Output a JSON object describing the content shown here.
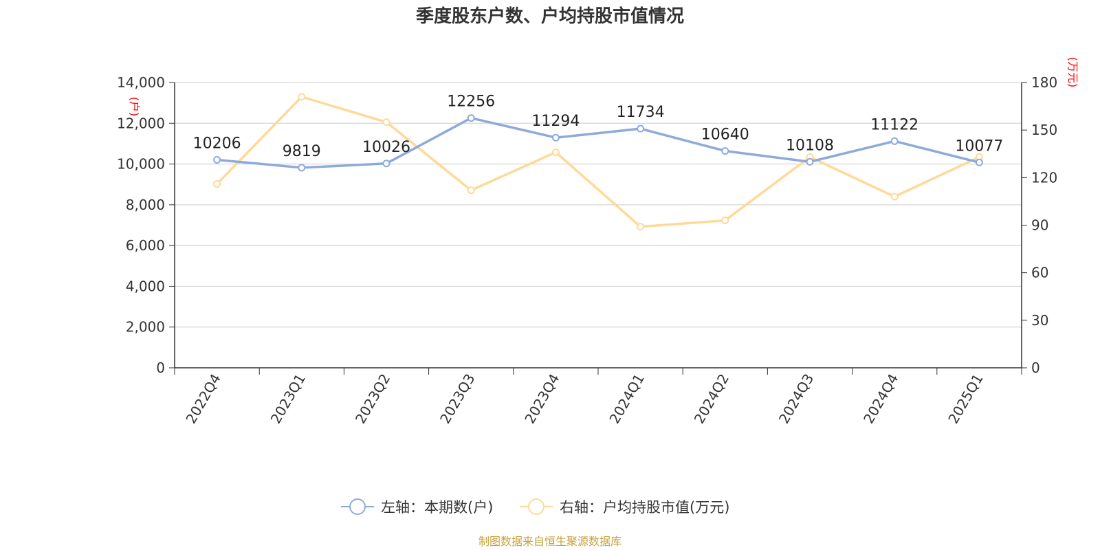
{
  "chart_data": {
    "type": "line",
    "title": "季度股东户数、户均持股市值情况",
    "categories": [
      "2022Q4",
      "2023Q1",
      "2023Q2",
      "2023Q3",
      "2023Q4",
      "2024Q1",
      "2024Q2",
      "2024Q3",
      "2024Q4",
      "2025Q1"
    ],
    "series": [
      {
        "name": "左轴：本期数(户)",
        "axis": "left",
        "color": "#8eaadb",
        "values": [
          10206,
          9819,
          10026,
          12256,
          11294,
          11734,
          10640,
          10108,
          11122,
          10077
        ],
        "labels": [
          "10206",
          "9819",
          "10026",
          "12256",
          "11294",
          "11734",
          "10640",
          "10108",
          "11122",
          "10077"
        ]
      },
      {
        "name": "右轴：户均持股市值(万元)",
        "axis": "right",
        "color": "#ffd998",
        "values": [
          116,
          171,
          155,
          112,
          136,
          89,
          93,
          133,
          108,
          133
        ]
      }
    ],
    "y_left": {
      "label": "(户)",
      "range": [
        0,
        14000
      ],
      "ticks": [
        "0",
        "2,000",
        "4,000",
        "6,000",
        "8,000",
        "10,000",
        "12,000",
        "14,000"
      ]
    },
    "y_right": {
      "label": "(万元)",
      "range": [
        0,
        180
      ],
      "ticks": [
        "0",
        "30",
        "60",
        "90",
        "120",
        "150",
        "180"
      ]
    },
    "grid": true,
    "legend_position": "bottom-center",
    "source": "制图数据来自恒生聚源数据库",
    "source_color": "#c7a23a",
    "unit_color": "#ff0000"
  }
}
